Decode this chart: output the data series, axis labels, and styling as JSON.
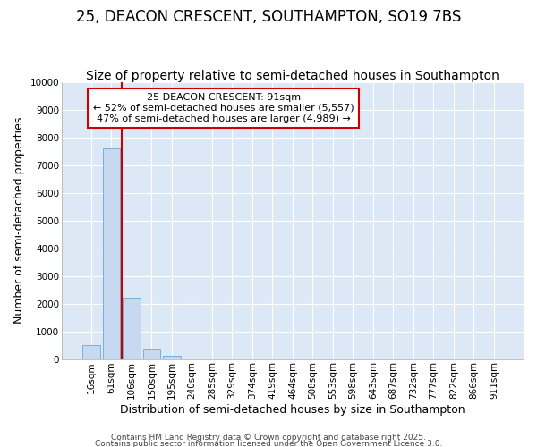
{
  "title": "25, DEACON CRESCENT, SOUTHAMPTON, SO19 7BS",
  "subtitle": "Size of property relative to semi-detached houses in Southampton",
  "xlabel": "Distribution of semi-detached houses by size in Southampton",
  "ylabel": "Number of semi-detached properties",
  "categories": [
    "16sqm",
    "61sqm",
    "106sqm",
    "150sqm",
    "195sqm",
    "240sqm",
    "285sqm",
    "329sqm",
    "374sqm",
    "419sqm",
    "464sqm",
    "508sqm",
    "553sqm",
    "598sqm",
    "643sqm",
    "687sqm",
    "732sqm",
    "777sqm",
    "822sqm",
    "866sqm",
    "911sqm"
  ],
  "values": [
    500,
    7600,
    2200,
    380,
    110,
    0,
    0,
    0,
    0,
    0,
    0,
    0,
    0,
    0,
    0,
    0,
    0,
    0,
    0,
    0,
    0
  ],
  "bar_color": "#c6d9f0",
  "bar_edge_color": "#7bafd4",
  "plot_bg_color": "#dce8f5",
  "fig_bg_color": "#ffffff",
  "grid_color": "#ffffff",
  "vline_color": "#cc0000",
  "annotation_text": "25 DEACON CRESCENT: 91sqm\n← 52% of semi-detached houses are smaller (5,557)\n47% of semi-detached houses are larger (4,989) →",
  "annotation_box_color": "#ffffff",
  "annotation_box_edge": "#cc0000",
  "ylim": [
    0,
    10000
  ],
  "yticks": [
    0,
    1000,
    2000,
    3000,
    4000,
    5000,
    6000,
    7000,
    8000,
    9000,
    10000
  ],
  "footer1": "Contains HM Land Registry data © Crown copyright and database right 2025.",
  "footer2": "Contains public sector information licensed under the Open Government Licence 3.0.",
  "title_fontsize": 12,
  "subtitle_fontsize": 10,
  "axis_label_fontsize": 9,
  "tick_fontsize": 7.5,
  "annotation_fontsize": 8,
  "footer_fontsize": 6.5
}
